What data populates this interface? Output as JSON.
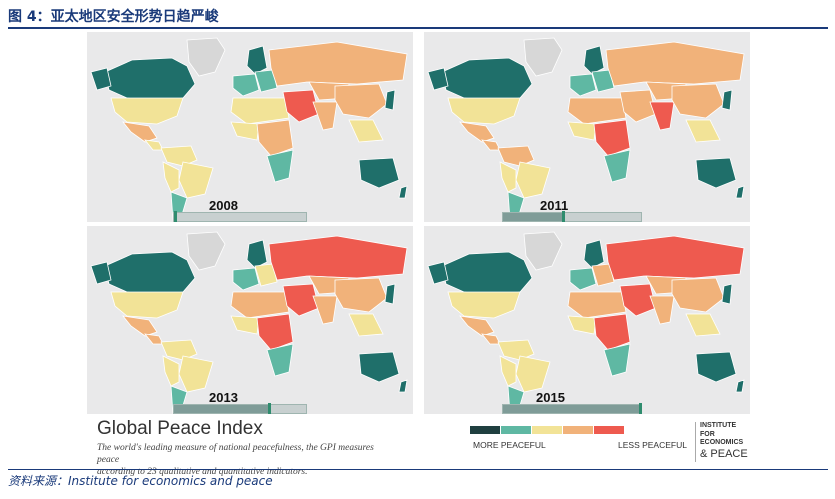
{
  "figure": {
    "title": "图 4：亚太地区安全形势日趋严峻",
    "source": "资料来源：Institute for economics and peace"
  },
  "colors": {
    "very_high": "#1f6f6a",
    "high": "#5fb8a3",
    "medium": "#f2e397",
    "low": "#f1b27a",
    "very_low": "#ee5a4f",
    "no_data": "#d7d7d7",
    "ocean": "#e9e9ea"
  },
  "maps": [
    {
      "year": "2008",
      "slider_fill": 0.0
    },
    {
      "year": "2011",
      "slider_fill": 0.43
    },
    {
      "year": "2013",
      "slider_fill": 0.71
    },
    {
      "year": "2015",
      "slider_fill": 1.0
    }
  ],
  "footer": {
    "title": "Global Peace Index",
    "description_line1": "The world's leading measure of national peacefulness, the GPI measures peace",
    "description_line2": "according to 23 qualitative and quantitative indicators.",
    "legend_more": "MORE PEACEFUL",
    "legend_less": "LESS PEACEFUL",
    "legend_colors": [
      "#1f3f40",
      "#5fb8a3",
      "#f2e397",
      "#f1b27a",
      "#ee5a4f"
    ],
    "institute_line1": "INSTITUTE FOR",
    "institute_line2": "ECONOMICS",
    "institute_line3": "& PEACE"
  }
}
